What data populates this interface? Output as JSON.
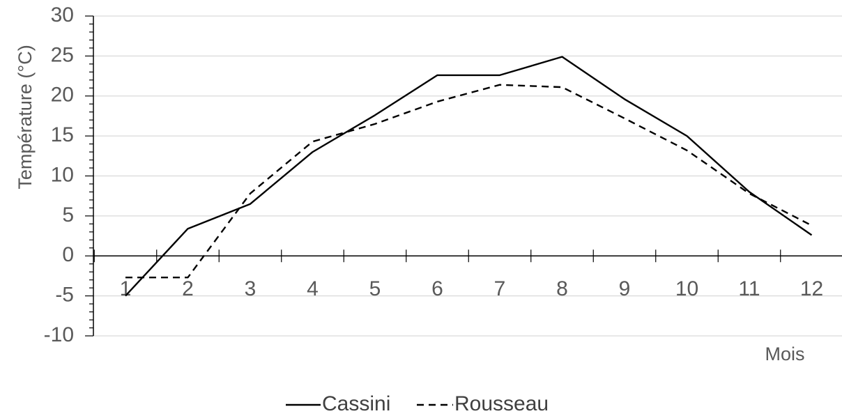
{
  "chart_data": {
    "type": "line",
    "title": "",
    "xlabel": "Mois",
    "ylabel": "Température (°C)",
    "ylim": [
      -10,
      30
    ],
    "yticks": [
      -10,
      -5,
      0,
      5,
      10,
      15,
      20,
      25,
      30
    ],
    "y_minor_step": 1,
    "grid": true,
    "legend_position": "bottom",
    "categories": [
      "1",
      "2",
      "3",
      "4",
      "5",
      "6",
      "7",
      "8",
      "9",
      "10",
      "11",
      "12"
    ],
    "series": [
      {
        "name": "Cassini",
        "style": "solid",
        "color": "#000000",
        "values": [
          -5.0,
          3.4,
          6.5,
          13.0,
          17.6,
          22.6,
          22.6,
          24.9,
          19.6,
          15.0,
          8.0,
          2.6
        ]
      },
      {
        "name": "Rousseau",
        "style": "dashed",
        "color": "#000000",
        "values": [
          -2.7,
          -2.7,
          7.8,
          14.3,
          16.5,
          19.3,
          21.4,
          21.1,
          17.2,
          13.2,
          7.8,
          3.8
        ]
      }
    ]
  },
  "colors": {
    "gridline": "#d9d9d9",
    "axis": "#000000",
    "text": "#595959",
    "legend_text": "#404040"
  }
}
